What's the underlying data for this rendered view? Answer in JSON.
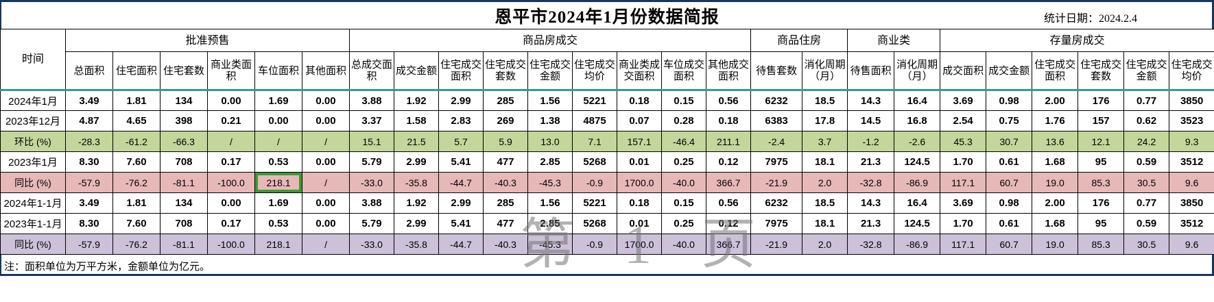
{
  "page": {
    "title": "恩平市2024年1月份数据简报",
    "stat_date": "统计日期：2024.2.4",
    "footnote": "注：面积单位为万平方米，金额单位为亿元。",
    "watermark": "第 1 页"
  },
  "colors": {
    "mom_row_bg": "#c3d69b",
    "yoy_row_bg": "#e6b8b7",
    "yoy2_row_bg": "#ccc1d9",
    "header_underline": "#2aa08c",
    "selection_border": "#3a9a35",
    "page_border": "#17375e"
  },
  "table": {
    "time_header": "时间",
    "groups": [
      {
        "label": "批准预售",
        "cols": [
          "总面积",
          "住宅面积",
          "住宅套数",
          "商业类面积",
          "车位面积",
          "其他面积"
        ]
      },
      {
        "label": "商品房成交",
        "cols": [
          "总成交面积",
          "成交金额",
          "住宅成交面积",
          "住宅成交套数",
          "住宅成交金额",
          "住宅成交均价",
          "商业类成交面积",
          "车位成交面积",
          "其他成交面积"
        ]
      },
      {
        "label": "商品住房",
        "cols": [
          "待售套数",
          "消化周期（月）"
        ]
      },
      {
        "label": "商业类",
        "cols": [
          "待售面积",
          "消化周期（月）"
        ]
      },
      {
        "label": "存量房成交",
        "cols": [
          "成交面积",
          "成交金额",
          "住宅成交面积",
          "住宅成交套数",
          "住宅成交金额",
          "住宅成交均价"
        ]
      }
    ],
    "selected": {
      "row": 4,
      "col": 4
    },
    "rows": [
      {
        "label": "2024年1月",
        "type": "data",
        "values": [
          "3.49",
          "1.81",
          "134",
          "0.00",
          "1.69",
          "0.00",
          "3.88",
          "1.92",
          "2.99",
          "285",
          "1.56",
          "5221",
          "0.18",
          "0.15",
          "0.56",
          "6232",
          "18.5",
          "14.3",
          "16.4",
          "3.69",
          "0.98",
          "2.00",
          "176",
          "0.77",
          "3850"
        ]
      },
      {
        "label": "2023年12月",
        "type": "data",
        "values": [
          "4.87",
          "4.65",
          "398",
          "0.21",
          "0.00",
          "0.00",
          "3.37",
          "1.58",
          "2.83",
          "269",
          "1.38",
          "4875",
          "0.07",
          "0.28",
          "0.18",
          "6383",
          "17.8",
          "14.5",
          "16.8",
          "2.54",
          "0.75",
          "1.76",
          "157",
          "0.62",
          "3523"
        ]
      },
      {
        "label": "环比 (%)",
        "type": "mom",
        "values": [
          "-28.3",
          "-61.2",
          "-66.3",
          "/",
          "/",
          "/",
          "15.1",
          "21.5",
          "5.7",
          "5.9",
          "13.0",
          "7.1",
          "157.1",
          "-46.4",
          "211.1",
          "-2.4",
          "3.7",
          "-1.2",
          "-2.6",
          "45.3",
          "30.7",
          "13.6",
          "12.1",
          "24.2",
          "9.3"
        ]
      },
      {
        "label": "2023年1月",
        "type": "data",
        "values": [
          "8.30",
          "7.60",
          "708",
          "0.17",
          "0.53",
          "0.00",
          "5.79",
          "2.99",
          "5.41",
          "477",
          "2.85",
          "5268",
          "0.01",
          "0.25",
          "0.12",
          "7975",
          "18.1",
          "21.3",
          "124.5",
          "1.70",
          "0.61",
          "1.68",
          "95",
          "0.59",
          "3512"
        ]
      },
      {
        "label": "同比 (%)",
        "type": "yoy",
        "values": [
          "-57.9",
          "-76.2",
          "-81.1",
          "-100.0",
          "218.1",
          "/",
          "-33.0",
          "-35.8",
          "-44.7",
          "-40.3",
          "-45.3",
          "-0.9",
          "1700.0",
          "-40.0",
          "366.7",
          "-21.9",
          "2.0",
          "-32.8",
          "-86.9",
          "117.1",
          "60.7",
          "19.0",
          "85.3",
          "30.5",
          "9.6"
        ]
      },
      {
        "label": "2024年1-1月",
        "type": "data",
        "values": [
          "3.49",
          "1.81",
          "134",
          "0.00",
          "1.69",
          "0.00",
          "3.88",
          "1.92",
          "2.99",
          "285",
          "1.56",
          "5221",
          "0.18",
          "0.15",
          "0.56",
          "6232",
          "18.5",
          "14.3",
          "16.4",
          "3.69",
          "0.98",
          "2.00",
          "176",
          "0.77",
          "3850"
        ]
      },
      {
        "label": "2023年1-1月",
        "type": "data",
        "values": [
          "8.30",
          "7.60",
          "708",
          "0.17",
          "0.53",
          "0.00",
          "5.79",
          "2.99",
          "5.41",
          "477",
          "2.85",
          "5268",
          "0.01",
          "0.25",
          "0.12",
          "7975",
          "18.1",
          "21.3",
          "124.5",
          "1.70",
          "0.61",
          "1.68",
          "95",
          "0.59",
          "3512"
        ]
      },
      {
        "label": "同比 (%)",
        "type": "yoy2",
        "values": [
          "-57.9",
          "-76.2",
          "-81.1",
          "-100.0",
          "218.1",
          "/",
          "-33.0",
          "-35.8",
          "-44.7",
          "-40.3",
          "-45.3",
          "-0.9",
          "1700.0",
          "-40.0",
          "366.7",
          "-21.9",
          "2.0",
          "-32.8",
          "-86.9",
          "117.1",
          "60.7",
          "19.0",
          "85.3",
          "30.5",
          "9.6"
        ]
      }
    ]
  }
}
